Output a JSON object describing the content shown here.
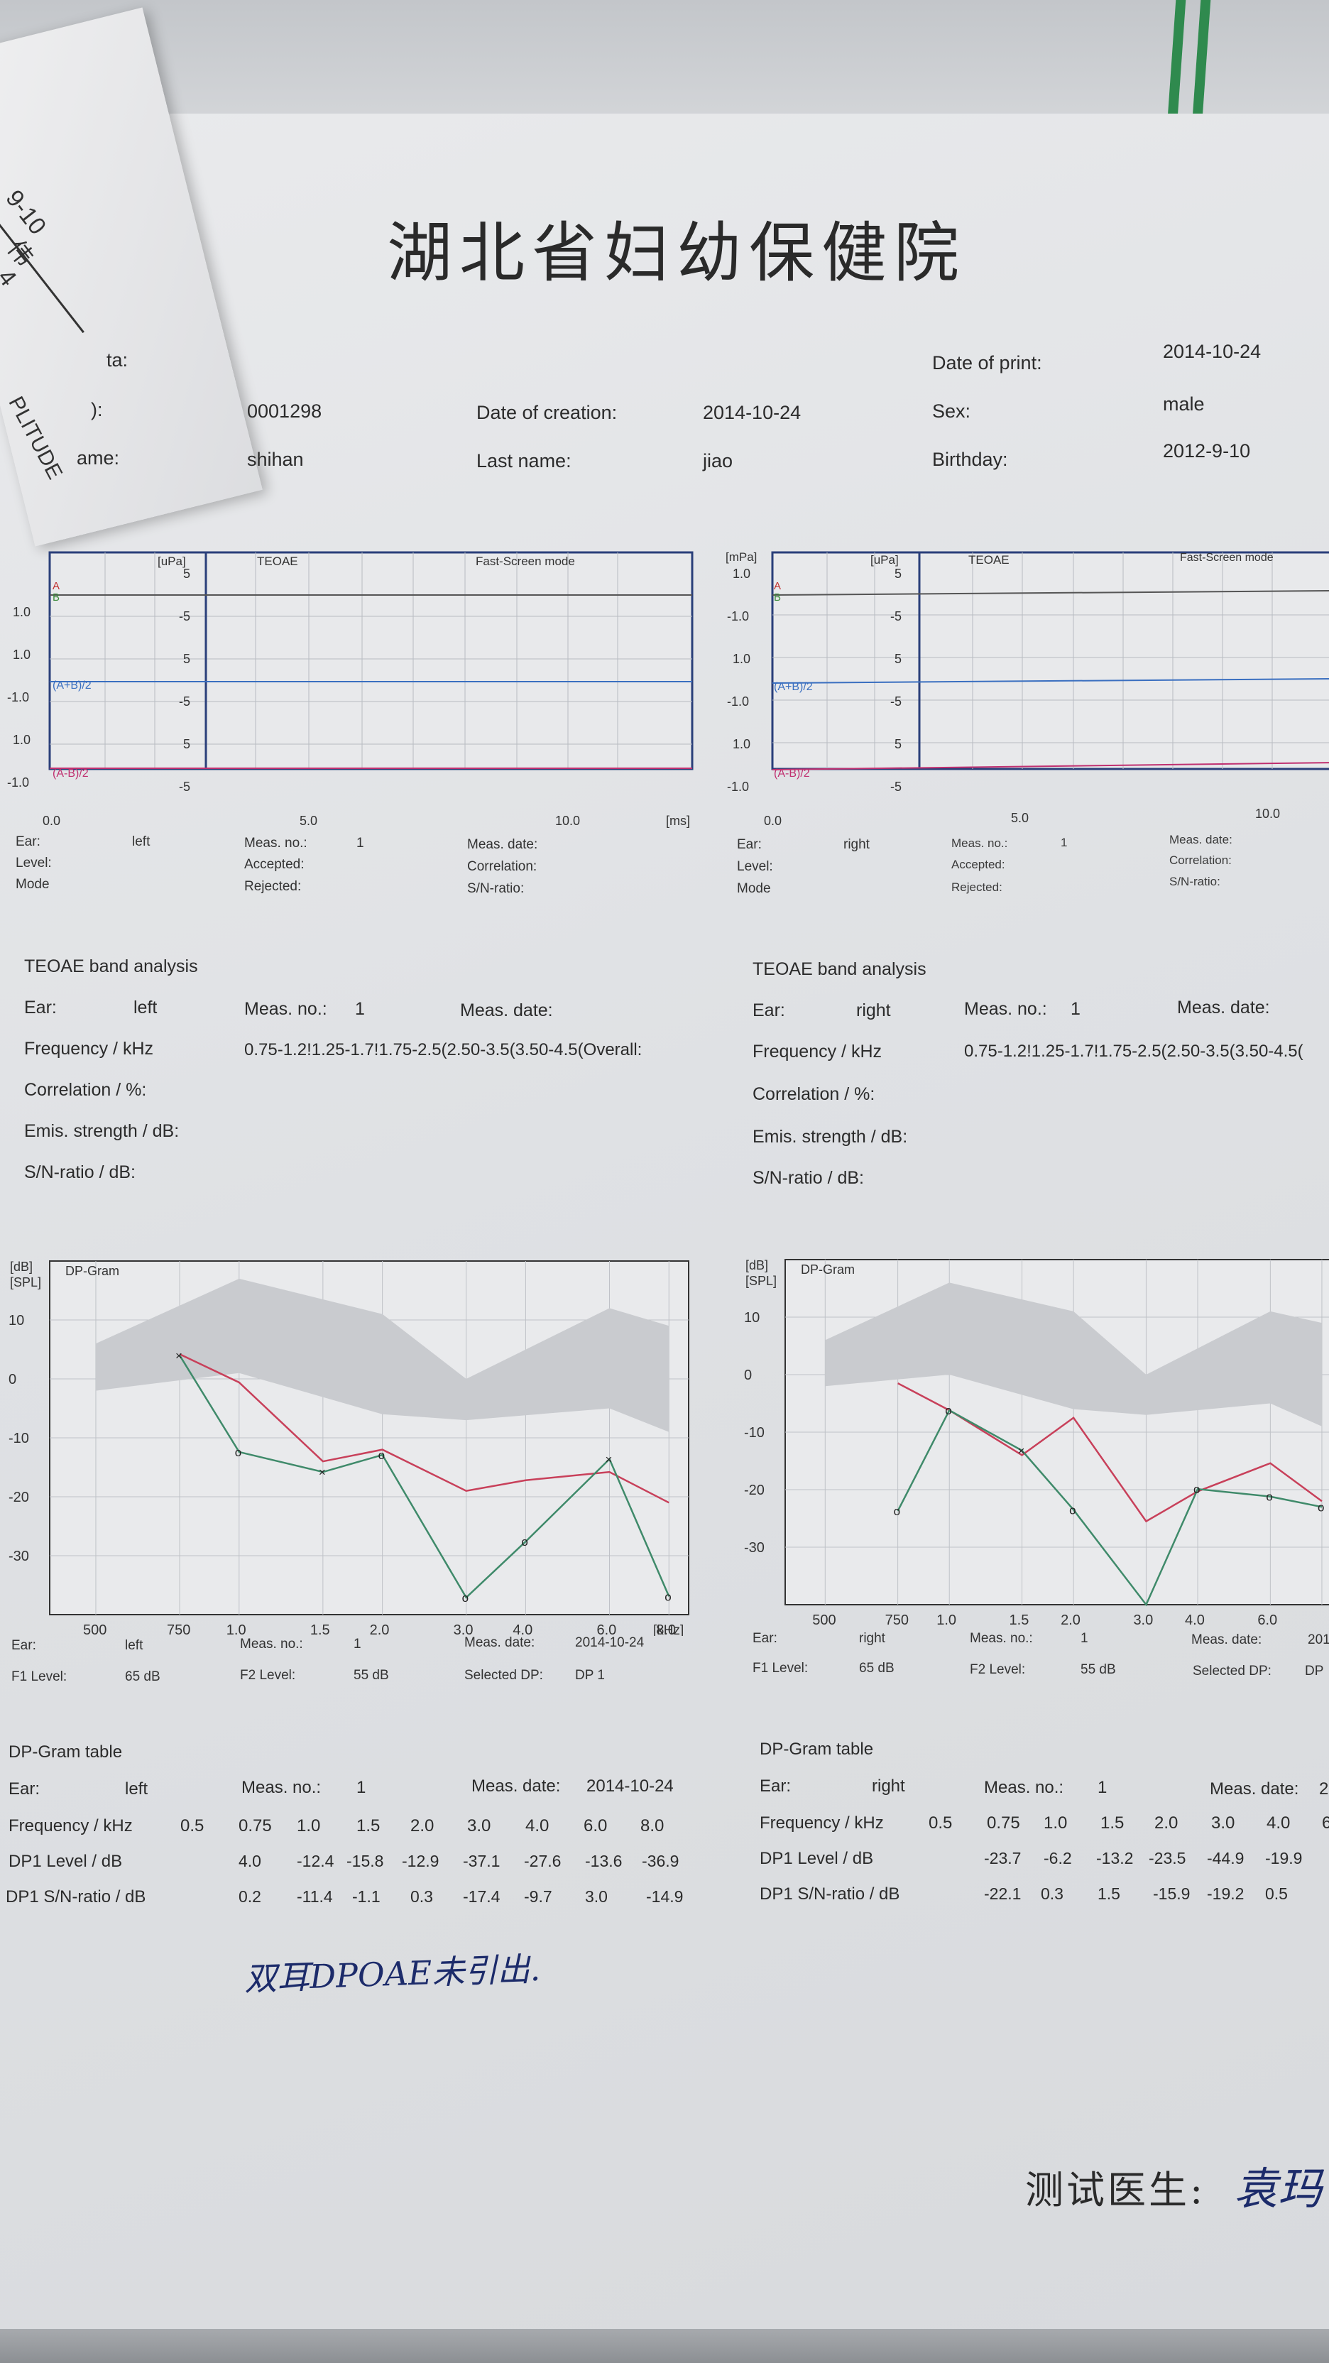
{
  "header": {
    "title": "湖北省妇幼保健院"
  },
  "curl": {
    "a": "9-10",
    "b": "伟",
    "c": "4",
    "d": "PLITUDE"
  },
  "patient": {
    "row1_label": "ta:",
    "date_of_print_label": "Date of print:",
    "date_of_print": "2014-10-24",
    "id_label": "):",
    "id": "0001298",
    "date_of_creation_label": "Date of creation:",
    "date_of_creation": "2014-10-24",
    "sex_label": "Sex:",
    "sex": "male",
    "first_name_label": "ame:",
    "first_name": "shihan",
    "last_name_label": "Last name:",
    "last_name": "jiao",
    "birthday_label": "Birthday:",
    "birthday": "2012-9-10"
  },
  "teoae_left": {
    "unit_l": "",
    "unit_upa": "[uPa]",
    "title": "TEOAE",
    "mode": "Fast-Screen mode",
    "lbl_a": "A",
    "lbl_b": "B",
    "lbl_ab_sum": "(A+B)/2",
    "lbl_ab_diff": "(A-B)/2",
    "left_ticks": [
      "1.0",
      "-1.0",
      "1.0",
      "-1.0",
      "1.0",
      "-1.0"
    ],
    "inner_ticks": [
      "5",
      "-5",
      "5",
      "-5",
      "5",
      "-5"
    ],
    "x_ticks": [
      "0.0",
      "5.0",
      "10.0"
    ],
    "x_unit": "[ms]"
  },
  "teoae_right": {
    "unit_l": "[mPa]",
    "unit_upa": "[uPa]",
    "title": "TEOAE",
    "mode": "Fast-Screen mode",
    "lbl_a": "A",
    "lbl_b": "B",
    "lbl_ab_sum": "(A+B)/2",
    "lbl_ab_diff": "(A-B)/2",
    "left_ticks": [
      "1.0",
      "-1.0",
      "1.0",
      "-1.0",
      "1.0",
      "-1.0"
    ],
    "inner_ticks": [
      "5",
      "-5",
      "5",
      "-5",
      "5",
      "-5"
    ],
    "x_ticks": [
      "0.0",
      "5.0",
      "10.0"
    ],
    "x_unit": ""
  },
  "teoae_meta_left": {
    "ear_label": "Ear:",
    "ear": "left",
    "level_label": "Level:",
    "mode_label": "Mode",
    "meas_no_label": "Meas. no.:",
    "meas_no": "1",
    "accepted_label": "Accepted:",
    "rejected_label": "Rejected:",
    "meas_date_label": "Meas. date:",
    "correlation_label": "Correlation:",
    "sn_label": "S/N-ratio:"
  },
  "teoae_meta_right": {
    "ear_label": "Ear:",
    "ear": "right",
    "level_label": "Level:",
    "mode_label": "Mode",
    "meas_no_label": "Meas. no.:",
    "meas_no": "1",
    "accepted_label": "Accepted:",
    "rejected_label": "Rejected:",
    "meas_date_label": "Meas. date:",
    "correlation_label": "Correlation:",
    "sn_label": "S/N-ratio:"
  },
  "band_left": {
    "title": "TEOAE band analysis",
    "ear_label": "Ear:",
    "ear": "left",
    "meas_no_label": "Meas. no.:",
    "meas_no": "1",
    "meas_date_label": "Meas. date:",
    "freq_label": "Frequency / kHz",
    "freq_bands": "0.75-1.2!1.25-1.7!1.75-2.5(2.50-3.5(3.50-4.5(Overall:",
    "corr_label": "Correlation / %:",
    "emis_label": "Emis. strength / dB:",
    "sn_label": "S/N-ratio / dB:"
  },
  "band_right": {
    "title": "TEOAE band analysis",
    "ear_label": "Ear:",
    "ear": "right",
    "meas_no_label": "Meas. no.:",
    "meas_no": "1",
    "meas_date_label": "Meas. date:",
    "freq_label": "Frequency / kHz",
    "freq_bands": "0.75-1.2!1.25-1.7!1.75-2.5(2.50-3.5(3.50-4.5(",
    "corr_label": "Correlation / %:",
    "emis_label": "Emis. strength / dB:",
    "sn_label": "S/N-ratio / dB:"
  },
  "dp_meta_left": {
    "ear_label": "Ear:",
    "ear": "left",
    "meas_no_label": "Meas. no.:",
    "meas_no": "1",
    "meas_date_label": "Meas. date:",
    "meas_date": "2014-10-24",
    "f1_label": "F1 Level:",
    "f1": "65 dB",
    "f2_label": "F2 Level:",
    "f2": "55 dB",
    "dp_label": "Selected DP:",
    "dp": "DP 1"
  },
  "dp_meta_right": {
    "ear_label": "Ear:",
    "ear": "right",
    "meas_no_label": "Meas. no.:",
    "meas_no": "1",
    "meas_date_label": "Meas. date:",
    "meas_date": "201",
    "f1_label": "F1 Level:",
    "f1": "65 dB",
    "f2_label": "F2 Level:",
    "f2": "55 dB",
    "dp_label": "Selected DP:",
    "dp": "DP"
  },
  "dp_table_left": {
    "title": "DP-Gram table",
    "ear_label": "Ear:",
    "ear": "left",
    "meas_no_label": "Meas. no.:",
    "meas_no": "1",
    "meas_date_label": "Meas. date:",
    "meas_date": "2014-10-24",
    "freq_label": "Frequency / kHz",
    "freqs": [
      "0.5",
      "0.75",
      "1.0",
      "1.5",
      "2.0",
      "3.0",
      "4.0",
      "6.0",
      "8.0"
    ],
    "dp_label": "DP1 Level / dB",
    "dp_vals": [
      "4.0",
      "-12.4",
      "-15.8",
      "-12.9",
      "-37.1",
      "-27.6",
      "-13.6",
      "-36.9"
    ],
    "sn_label": "DP1 S/N-ratio / dB",
    "sn_vals": [
      "0.2",
      "-11.4",
      "-1.1",
      "0.3",
      "-17.4",
      "-9.7",
      "3.0",
      "-14.9"
    ]
  },
  "dp_table_right": {
    "title": "DP-Gram table",
    "ear_label": "Ear:",
    "ear": "right",
    "meas_no_label": "Meas. no.:",
    "meas_no": "1",
    "meas_date_label": "Meas. date:",
    "meas_date": "2",
    "freq_label": "Frequency / kHz",
    "freqs": [
      "0.5",
      "0.75",
      "1.0",
      "1.5",
      "2.0",
      "3.0",
      "4.0",
      "6"
    ],
    "dp_label": "DP1 Level / dB",
    "dp_vals": [
      "-23.7",
      "-6.2",
      "-13.2",
      "-23.5",
      "-44.9",
      "-19.9"
    ],
    "sn_label": "DP1 S/N-ratio / dB",
    "sn_vals": [
      "-22.1",
      "0.3",
      "1.5",
      "-15.9",
      "-19.2",
      "0.5"
    ]
  },
  "note": {
    "text": "双耳DPOAE未引出."
  },
  "signature": {
    "label": "测试医生:",
    "name": "袁玛"
  },
  "chart_data": [
    {
      "type": "line",
      "title": "DP-Gram",
      "ylabel": "[dB] [SPL]",
      "xlabel": "[kHz]",
      "x_ticks": [
        "500",
        "750",
        "1.0",
        "1.5",
        "2.0",
        "3.0",
        "4.0",
        "6.0",
        "8.0"
      ],
      "y_ticks": [
        "10",
        "0",
        "-10",
        "-20",
        "-30"
      ],
      "ylim": [
        -40,
        20
      ],
      "log_x": true,
      "grid": true,
      "series": [
        {
          "kind": "noise",
          "x": [
            0.75,
            1.0,
            1.5,
            2.0,
            3.0,
            4.0,
            6.0,
            8.0
          ],
          "values": [
            4.2,
            -0.6,
            -14.0,
            -12.0,
            -19.0,
            -17.2,
            -15.8,
            -21.0
          ]
        },
        {
          "kind": "dp",
          "x": [
            0.75,
            1.0,
            1.5,
            2.0,
            3.0,
            4.0,
            6.0,
            8.0
          ],
          "values": [
            4.0,
            -12.4,
            -15.8,
            -12.9,
            -37.1,
            -27.6,
            -13.6,
            -36.9
          ]
        }
      ],
      "band": {
        "x": [
          0.5,
          1.0,
          2.0,
          3.0,
          6.0,
          8.0
        ],
        "upper": [
          6,
          17,
          11,
          0,
          12,
          9
        ],
        "lower": [
          -2,
          1,
          -6,
          -7,
          -5,
          -9
        ]
      }
    },
    {
      "type": "line",
      "title": "DP-Gram",
      "ylabel": "[dB] [SPL]",
      "xlabel": "",
      "x_ticks": [
        "500",
        "750",
        "1.0",
        "1.5",
        "2.0",
        "3.0",
        "4.0",
        "6.0"
      ],
      "y_ticks": [
        "10",
        "0",
        "-10",
        "-20",
        "-30"
      ],
      "ylim": [
        -40,
        20
      ],
      "log_x": true,
      "grid": true,
      "series": [
        {
          "kind": "noise",
          "x": [
            0.75,
            1.0,
            1.5,
            2.0,
            3.0,
            4.0,
            6.0,
            8.0
          ],
          "values": [
            -1.5,
            -6.2,
            -14.0,
            -7.5,
            -25.5,
            -20.3,
            -15.4,
            -22.0
          ]
        },
        {
          "kind": "dp",
          "x": [
            0.75,
            1.0,
            1.5,
            2.0,
            3.0,
            4.0,
            6.0,
            8.0
          ],
          "values": [
            -23.7,
            -6.2,
            -13.2,
            -23.5,
            -44.9,
            -19.9,
            -21.2,
            -23.0
          ]
        }
      ],
      "band": {
        "x": [
          0.5,
          1.0,
          2.0,
          3.0,
          6.0,
          8.0
        ],
        "upper": [
          6,
          16,
          11,
          0,
          11,
          9
        ],
        "lower": [
          -2,
          0,
          -6,
          -7,
          -5,
          -9
        ]
      }
    }
  ]
}
